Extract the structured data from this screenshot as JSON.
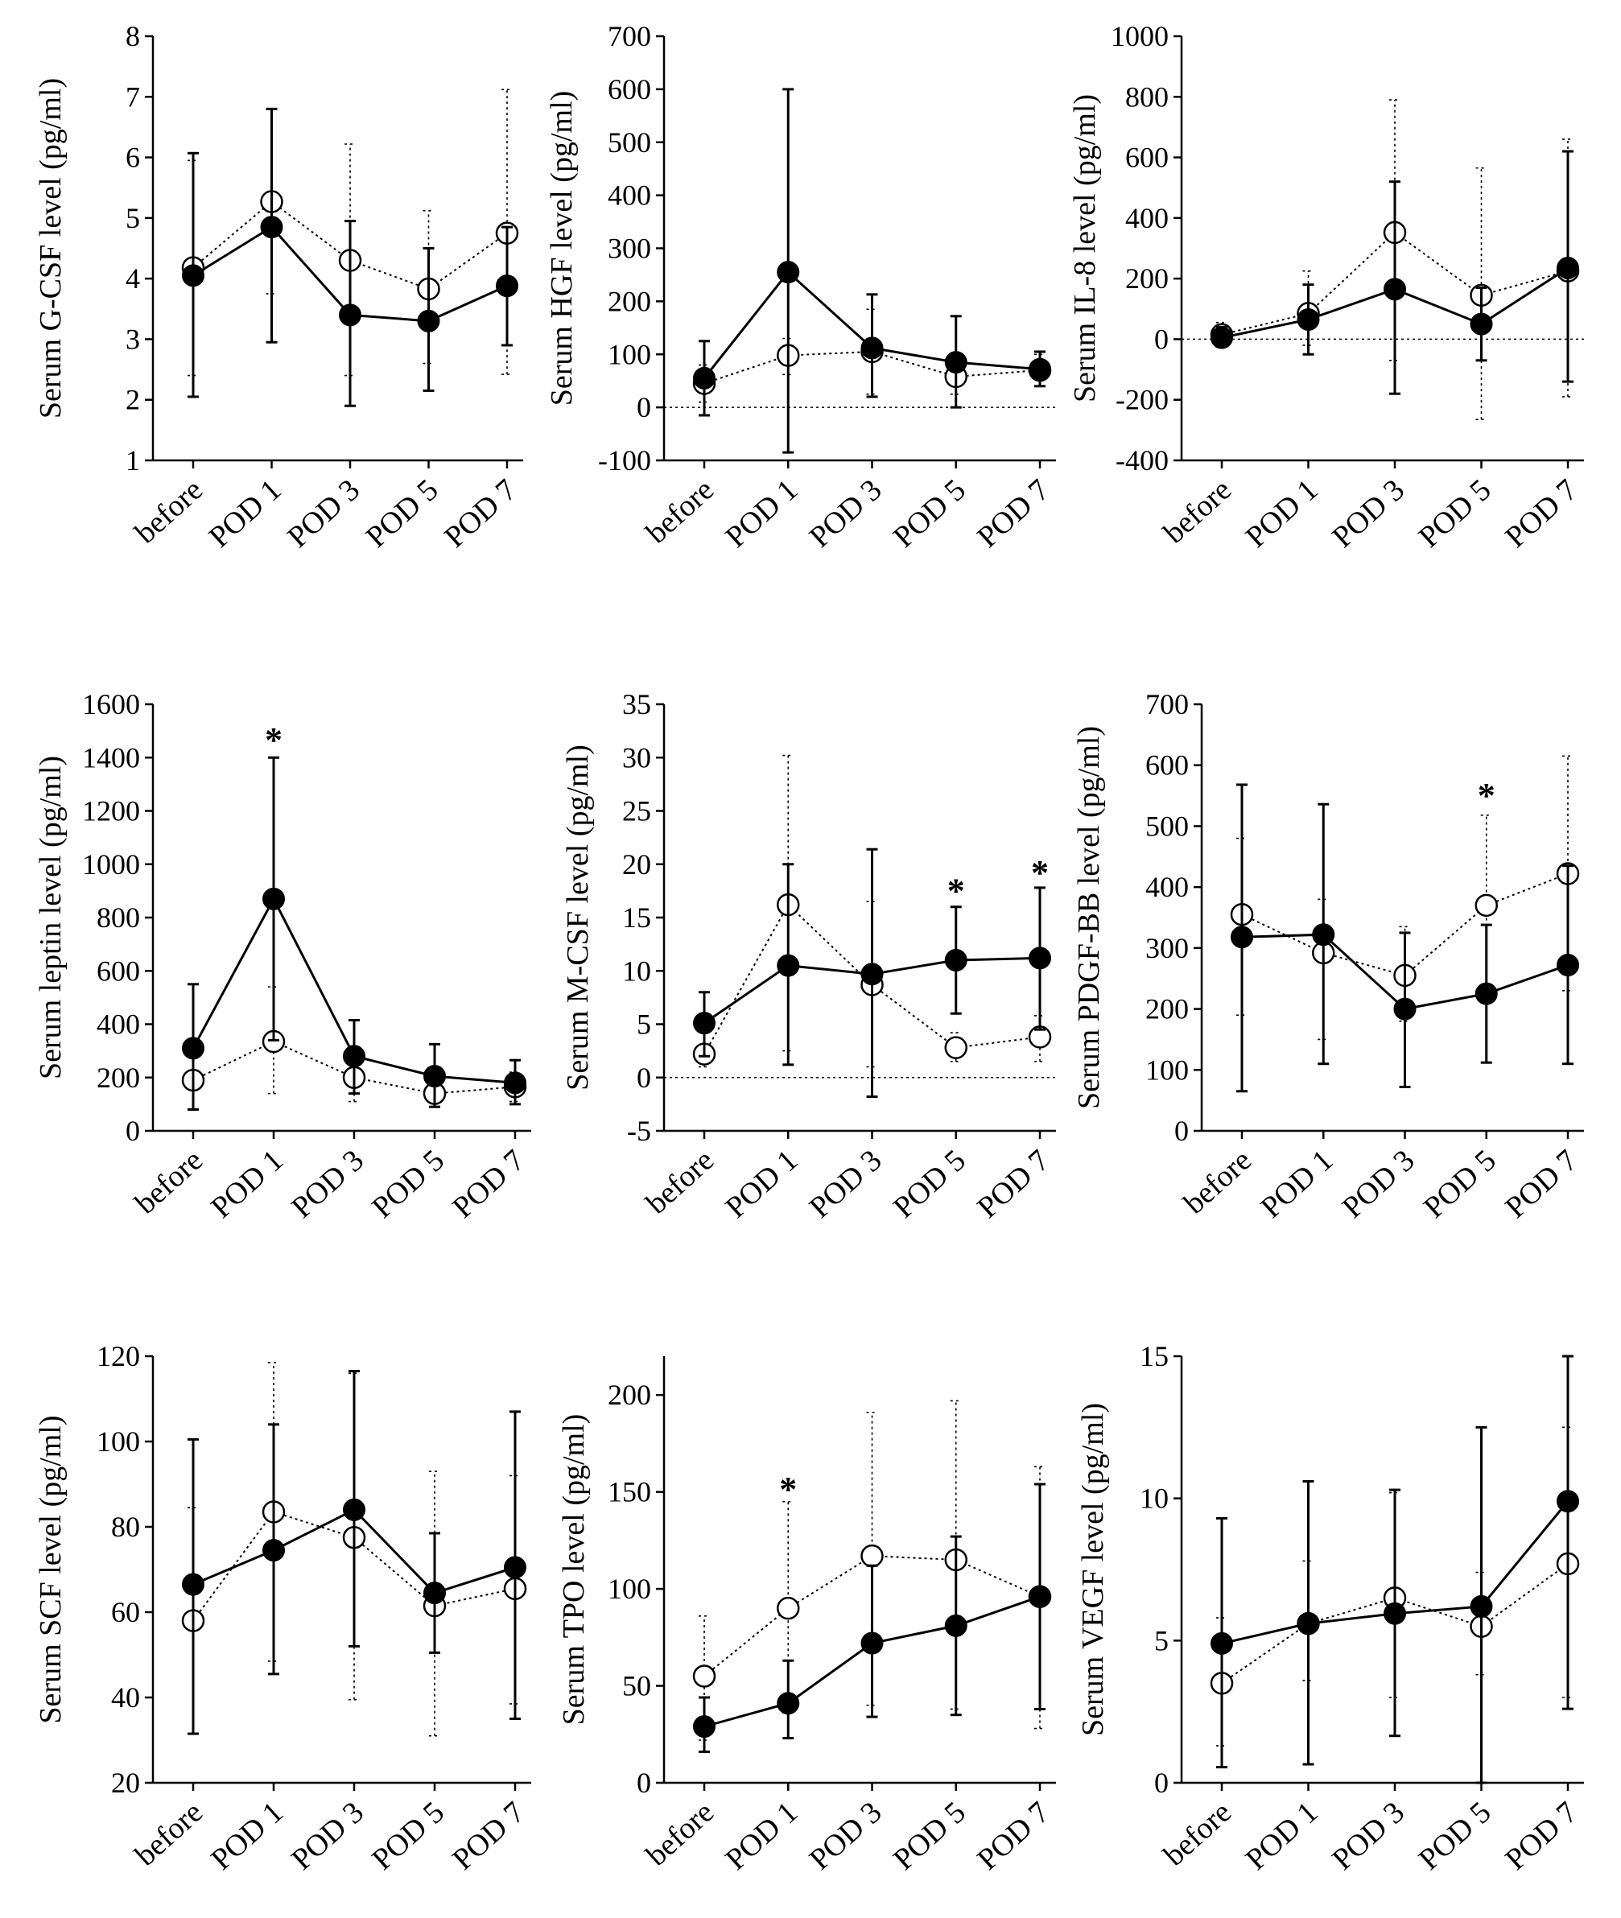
{
  "figure": {
    "colors": {
      "ink": "#000000",
      "background": "#ffffff"
    },
    "markers": {
      "group_a": "filled-circle",
      "group_b": "open-circle"
    }
  },
  "chart_data": [
    {
      "type": "line",
      "ylabel": "Serum  G-CSF level  (pg/ml)",
      "categories": [
        "before",
        "POD 1",
        "POD 3",
        "POD 5",
        "POD 7"
      ],
      "ylim": [
        1,
        8
      ],
      "yticks": [
        1,
        2,
        3,
        4,
        5,
        6,
        7,
        8
      ],
      "zero_line": false,
      "series": [
        {
          "name": "filled",
          "values": [
            4.05,
            4.85,
            3.4,
            3.3,
            3.88
          ],
          "err_low": [
            2.05,
            2.95,
            1.9,
            2.15,
            2.9
          ],
          "err_high": [
            6.07,
            6.8,
            4.95,
            4.5,
            4.85
          ]
        },
        {
          "name": "open",
          "values": [
            4.18,
            5.27,
            4.3,
            3.83,
            4.75
          ],
          "err_low": [
            2.4,
            3.75,
            2.4,
            2.6,
            2.42
          ],
          "err_high": [
            5.95,
            6.8,
            6.22,
            5.12,
            7.12
          ]
        }
      ],
      "annotations": []
    },
    {
      "type": "line",
      "ylabel": "Serum  HGF level  (pg/ml)",
      "categories": [
        "before",
        "POD 1",
        "POD 3",
        "POD 5",
        "POD 7"
      ],
      "ylim": [
        -100,
        700
      ],
      "yticks": [
        -100,
        0,
        100,
        200,
        300,
        400,
        500,
        600,
        700
      ],
      "zero_line": true,
      "series": [
        {
          "name": "filled",
          "values": [
            55,
            255,
            112,
            85,
            72
          ],
          "err_low": [
            -15,
            -85,
            20,
            0,
            40
          ],
          "err_high": [
            125,
            600,
            213,
            172,
            105
          ]
        },
        {
          "name": "open",
          "values": [
            45,
            98,
            105,
            58,
            70
          ],
          "err_low": [
            10,
            62,
            25,
            25,
            40
          ],
          "err_high": [
            80,
            130,
            185,
            85,
            100
          ]
        }
      ],
      "annotations": []
    },
    {
      "type": "line",
      "ylabel": "Serum  IL-8 level  (pg/ml)",
      "categories": [
        "before",
        "POD 1",
        "POD 3",
        "POD 5",
        "POD 7"
      ],
      "ylim": [
        -400,
        1000
      ],
      "yticks": [
        -400,
        -200,
        0,
        200,
        400,
        600,
        800,
        1000
      ],
      "zero_line": true,
      "series": [
        {
          "name": "filled",
          "values": [
            5,
            65,
            165,
            50,
            235
          ],
          "err_low": [
            -20,
            -50,
            -180,
            -70,
            -140
          ],
          "err_high": [
            40,
            180,
            520,
            170,
            620
          ]
        },
        {
          "name": "open",
          "values": [
            15,
            85,
            352,
            145,
            225
          ],
          "err_low": [
            -10,
            -20,
            -70,
            -265,
            -190
          ],
          "err_high": [
            55,
            225,
            790,
            565,
            660
          ]
        }
      ],
      "annotations": []
    },
    {
      "type": "line",
      "ylabel": "Serum  leptin  level   (pg/ml)",
      "categories": [
        "before",
        "POD 1",
        "POD 3",
        "POD 5",
        "POD 7"
      ],
      "ylim": [
        0,
        1600
      ],
      "yticks": [
        0,
        200,
        400,
        600,
        800,
        1000,
        1200,
        1400,
        1600
      ],
      "zero_line": false,
      "series": [
        {
          "name": "filled",
          "values": [
            310,
            870,
            280,
            205,
            180
          ],
          "err_low": [
            80,
            340,
            140,
            90,
            100
          ],
          "err_high": [
            550,
            1400,
            415,
            325,
            265
          ]
        },
        {
          "name": "open",
          "values": [
            190,
            335,
            200,
            140,
            165
          ],
          "err_low": [
            80,
            140,
            110,
            90,
            110
          ],
          "err_high": [
            300,
            540,
            300,
            200,
            220
          ]
        }
      ],
      "annotations": [
        {
          "category": "POD 1",
          "text": "*",
          "y": 1470
        }
      ]
    },
    {
      "type": "line",
      "ylabel": "Serum  M-CSF level   (pg/ml)",
      "categories": [
        "before",
        "POD 1",
        "POD 3",
        "POD 5",
        "POD 7"
      ],
      "ylim": [
        -5,
        35
      ],
      "yticks": [
        -5,
        0,
        5,
        10,
        15,
        20,
        25,
        30,
        35
      ],
      "zero_line": true,
      "series": [
        {
          "name": "filled",
          "values": [
            5.1,
            10.5,
            9.7,
            11.0,
            11.2
          ],
          "err_low": [
            2.0,
            1.2,
            -1.8,
            6.0,
            4.5
          ],
          "err_high": [
            8.0,
            20.0,
            21.4,
            16.0,
            17.8
          ]
        },
        {
          "name": "open",
          "values": [
            2.2,
            16.2,
            8.7,
            2.8,
            3.8
          ],
          "err_low": [
            1.0,
            2.5,
            1.0,
            1.5,
            1.5
          ],
          "err_high": [
            4.5,
            30.2,
            16.5,
            4.2,
            5.8
          ]
        }
      ],
      "annotations": [
        {
          "category": "POD 5",
          "text": "*",
          "y": 17.6
        },
        {
          "category": "POD 7",
          "text": "*",
          "y": 19.3
        }
      ]
    },
    {
      "type": "line",
      "ylabel": "Serum  PDGF-BB level   (pg/ml)",
      "categories": [
        "before",
        "POD 1",
        "POD 3",
        "POD 5",
        "POD 7"
      ],
      "ylim": [
        0,
        700
      ],
      "yticks": [
        0,
        100,
        200,
        300,
        400,
        500,
        600,
        700
      ],
      "zero_line": false,
      "series": [
        {
          "name": "filled",
          "values": [
            318,
            322,
            200,
            225,
            272
          ],
          "err_low": [
            65,
            110,
            72,
            112,
            110
          ],
          "err_high": [
            568,
            536,
            325,
            338,
            435
          ]
        },
        {
          "name": "open",
          "values": [
            355,
            292,
            255,
            370,
            422
          ],
          "err_low": [
            190,
            150,
            180,
            225,
            230
          ],
          "err_high": [
            480,
            380,
            335,
            518,
            615
          ]
        }
      ],
      "annotations": [
        {
          "category": "POD 5",
          "text": "*",
          "y": 552
        }
      ]
    },
    {
      "type": "line",
      "ylabel": "Serum  SCF level   (pg/ml)",
      "categories": [
        "before",
        "POD 1",
        "POD 3",
        "POD 5",
        "POD 7"
      ],
      "ylim": [
        20,
        120
      ],
      "yticks": [
        20,
        40,
        60,
        80,
        100,
        120
      ],
      "zero_line": false,
      "series": [
        {
          "name": "filled",
          "values": [
            66.5,
            74.5,
            84,
            64.5,
            70.5
          ],
          "err_low": [
            31.5,
            45.5,
            52,
            50.5,
            35
          ],
          "err_high": [
            100.5,
            104,
            116.5,
            78.5,
            107
          ]
        },
        {
          "name": "open",
          "values": [
            58,
            83.5,
            77.5,
            61.5,
            65.5
          ],
          "err_low": [
            31.5,
            48.5,
            39.5,
            31,
            38.5
          ],
          "err_high": [
            84.5,
            118.5,
            116,
            93,
            92
          ]
        }
      ],
      "annotations": []
    },
    {
      "type": "line",
      "ylabel": "Serum  TPO level   (pg/ml)",
      "categories": [
        "before",
        "POD 1",
        "POD 3",
        "POD 5",
        "POD 7"
      ],
      "ylim": [
        0,
        220
      ],
      "yticks": [
        0,
        50,
        100,
        150,
        200
      ],
      "zero_line": false,
      "series": [
        {
          "name": "filled",
          "values": [
            29,
            41,
            72,
            81,
            96
          ],
          "err_low": [
            16,
            23,
            34,
            35,
            38
          ],
          "err_high": [
            44,
            63,
            112,
            127,
            154
          ]
        },
        {
          "name": "open",
          "values": [
            55,
            90,
            117,
            115,
            96
          ],
          "err_low": [
            22,
            36,
            40,
            38,
            28
          ],
          "err_high": [
            86,
            145,
            191,
            197,
            163
          ]
        }
      ],
      "annotations": [
        {
          "category": "POD 1",
          "text": "*",
          "y": 152
        }
      ]
    },
    {
      "type": "line",
      "ylabel": "Serum  VEGF  level   (pg/ml)",
      "categories": [
        "before",
        "POD 1",
        "POD 3",
        "POD 5",
        "POD 7"
      ],
      "ylim": [
        0,
        15
      ],
      "yticks": [
        0,
        5,
        10,
        15
      ],
      "zero_line": false,
      "series": [
        {
          "name": "filled",
          "values": [
            4.9,
            5.6,
            5.95,
            6.2,
            9.9
          ],
          "err_low": [
            0.55,
            0.65,
            1.65,
            0,
            2.6
          ],
          "err_high": [
            9.3,
            10.6,
            10.3,
            12.5,
            15
          ]
        },
        {
          "name": "open",
          "values": [
            3.5,
            5.6,
            6.5,
            5.5,
            7.7
          ],
          "err_low": [
            1.3,
            3.6,
            3.0,
            3.8,
            3.0
          ],
          "err_high": [
            5.8,
            7.8,
            10.2,
            7.4,
            12.5
          ]
        }
      ],
      "annotations": []
    }
  ]
}
